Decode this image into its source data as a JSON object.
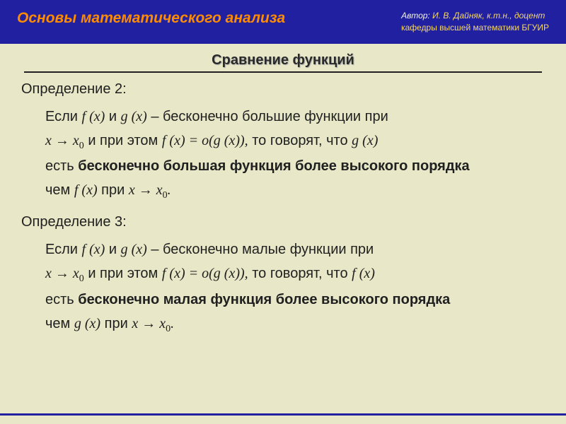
{
  "header": {
    "main_title": "Основы математического анализа",
    "author_label": "Автор:",
    "author_name": "И. В. Дайняк,  к.т.н., доцент",
    "author_dept": "кафедры высшей математики БГУИР"
  },
  "section_title": "Сравнение функций",
  "def2": {
    "label": "Определение 2:",
    "t1": "Если ",
    "fx": "f (x)",
    "t2": "  и  ",
    "gx": "g (x)",
    "t3": "  –  бесконечно большие функции при",
    "arrow": "x → x",
    "sub0": "0",
    "t4": "   и при этом   ",
    "eq": "f (x) = o(g (x)),",
    "t5": "   то говорят, что  ",
    "gx2": "g (x)",
    "t6": "есть ",
    "bold": "бесконечно большая функция более высокого порядка",
    "t7": "чем  ",
    "fx2": "f (x)",
    "t8": "  при   ",
    "arrow2": "x → x",
    "dot": "."
  },
  "def3": {
    "label": "Определение 3:",
    "t1": "Если ",
    "fx": "f (x)",
    "t2": "  и  ",
    "gx": "g (x)",
    "t3": "  –  бесконечно малые функции при",
    "arrow": "x → x",
    "sub0": "0",
    "t4": "   и при этом   ",
    "eq": "f (x) = o(g (x)),",
    "t5": "   то говорят, что  ",
    "fx2": "f (x)",
    "t6": "есть ",
    "bold": "бесконечно малая функция более высокого порядка",
    "t7": "чем  ",
    "gx2": "g (x)",
    "t8": "  при   ",
    "arrow2": "x → x",
    "dot": "."
  },
  "colors": {
    "header_bg": "#2020a0",
    "title_color": "#ff8c00",
    "author_color": "#f5d76e",
    "body_bg": "#e8e8c8",
    "text_color": "#202020"
  }
}
